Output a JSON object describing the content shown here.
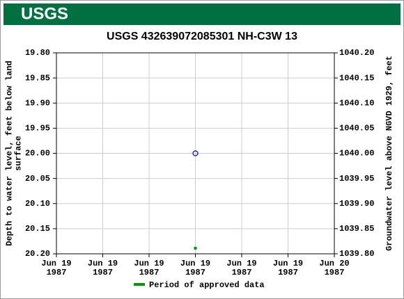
{
  "header": {
    "logo": "USGS"
  },
  "chart_data": {
    "type": "scatter",
    "title": "USGS 432639072085301 NH-C3W   13",
    "y_label": "Depth to water level, feet below land\nsurface",
    "y2_label": "Groundwater level above NGVD 1929, feet",
    "xlim": [
      "1987-06-19T00:00",
      "1987-06-20T00:00"
    ],
    "xticks": [
      {
        "value": "1987-06-19T00:00",
        "label": "Jun 19\n1987"
      },
      {
        "value": "1987-06-19T04:00",
        "label": "Jun 19\n1987"
      },
      {
        "value": "1987-06-19T08:00",
        "label": "Jun 19\n1987"
      },
      {
        "value": "1987-06-19T12:00",
        "label": "Jun 19\n1987"
      },
      {
        "value": "1987-06-19T16:00",
        "label": "Jun 19\n1987"
      },
      {
        "value": "1987-06-19T20:00",
        "label": "Jun 19\n1987"
      },
      {
        "value": "1987-06-20T00:00",
        "label": "Jun 20\n1987"
      }
    ],
    "ylim": [
      19.8,
      20.2
    ],
    "yticks": [
      {
        "value": 19.8,
        "label": "19.80"
      },
      19.85,
      {
        "value": 19.9,
        "label": "19.90"
      },
      19.95,
      {
        "value": 20,
        "label": "20.00"
      },
      20.05,
      {
        "value": 20.1,
        "label": "20.10"
      },
      20.15,
      {
        "value": 20.2,
        "label": "20.20"
      }
    ],
    "y2lim": [
      1040.2,
      1039.8
    ],
    "y2ticks": [
      {
        "value": 1040.2,
        "label": "1040.20"
      },
      1040.15,
      {
        "value": 1040.1,
        "label": "1040.10"
      },
      1040.05,
      {
        "value": 1040,
        "label": "1040.00"
      },
      1039.95,
      {
        "value": 1039.9,
        "label": "1039.90"
      },
      1039.85,
      {
        "value": 1039.8,
        "label": "1039.80"
      }
    ],
    "grid": true,
    "series": [
      {
        "name": "Depth to water level",
        "color": "#0000cc",
        "x": [
          "1987-06-19T12:00"
        ],
        "values": [
          20.0
        ]
      }
    ],
    "approved": {
      "name": "Period of approved data",
      "color": "#009900",
      "x": [
        "1987-06-19T12:00"
      ]
    }
  }
}
